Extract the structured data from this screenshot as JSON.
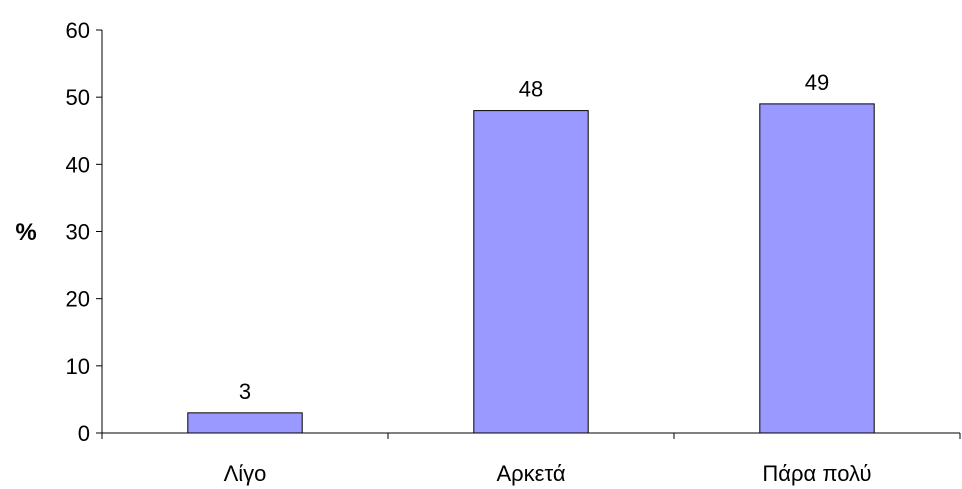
{
  "chart_data": {
    "type": "bar",
    "categories": [
      "Λίγο",
      "Αρκετά",
      "Πάρα πολύ"
    ],
    "values": [
      3,
      48,
      49
    ],
    "data_labels": [
      "3",
      "48",
      "49"
    ],
    "title": "",
    "xlabel": "",
    "ylabel": "%",
    "ylim": [
      0,
      60
    ],
    "yticks": [
      0,
      10,
      20,
      30,
      40,
      50,
      60
    ],
    "ytick_labels": [
      "0",
      "10",
      "20",
      "30",
      "40",
      "50",
      "60"
    ],
    "grid": false,
    "legend": "none",
    "bar_color": "#9999ff",
    "bar_edge_color": "#000000"
  }
}
